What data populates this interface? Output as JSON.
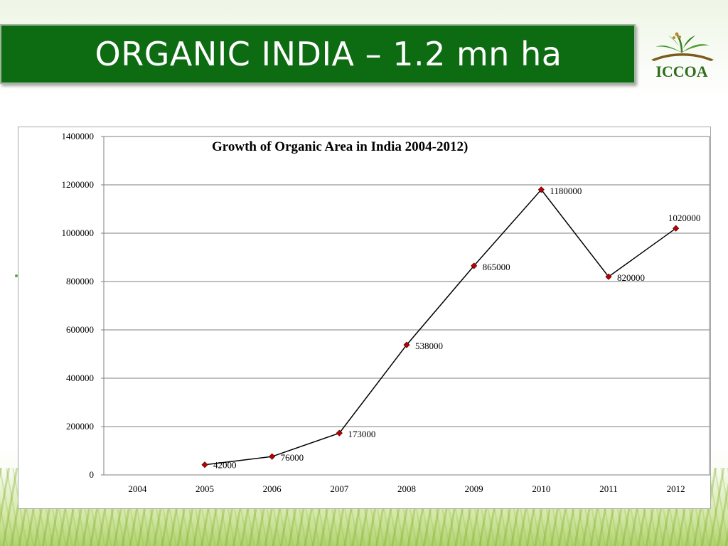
{
  "slide": {
    "title": "ORGANIC INDIA – 1.2 mn ha",
    "logo_text": "ICCOA",
    "colors": {
      "title_bg": "#0d6b12",
      "title_text": "#ffffff",
      "marker": "#c00000",
      "line": "#000000",
      "grid": "#7f7f7f"
    }
  },
  "chart_data": {
    "type": "line",
    "title": "Growth of Organic Area in India 2004-2012)",
    "xlabel": "",
    "ylabel": "",
    "categories": [
      "2004",
      "2005",
      "2006",
      "2007",
      "2008",
      "2009",
      "2010",
      "2011",
      "2012"
    ],
    "series": [
      {
        "values": [
          null,
          42000,
          76000,
          173000,
          538000,
          865000,
          1180000,
          820000,
          1020000
        ]
      }
    ],
    "data_labels": [
      "",
      "42000",
      "76000",
      "173000",
      "538000",
      "865000",
      "1180000",
      "820000",
      "1020000"
    ],
    "ylim": [
      0,
      1400000
    ],
    "yticks": [
      "0",
      "200000",
      "400000",
      "600000",
      "800000",
      "1000000",
      "1200000",
      "1400000"
    ],
    "grid": "horizontal",
    "legend": "none"
  }
}
